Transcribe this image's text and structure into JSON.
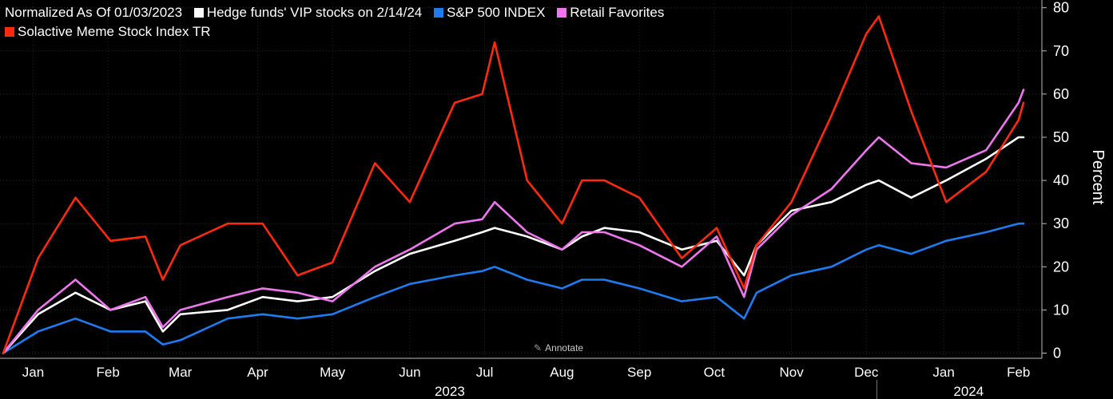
{
  "legend": {
    "items": [
      {
        "label": "Normalized As Of 01/03/2023",
        "color": null
      },
      {
        "label": "Hedge funds' VIP stocks on 2/14/24",
        "color": "#ffffff"
      },
      {
        "label": "S&P 500 INDEX",
        "color": "#1e7bf0"
      },
      {
        "label": "Retail Favorites",
        "color": "#ee77ee"
      },
      {
        "label": "Solactive Meme Stock Index TR",
        "color": "#ff2a10"
      }
    ]
  },
  "annotate_label": "Annotate",
  "annotate_icon": "pencil-icon",
  "chart_data": {
    "type": "line",
    "ylabel": "Percent",
    "ylim": [
      -2,
      80
    ],
    "yticks": [
      0,
      10,
      20,
      30,
      40,
      50,
      60,
      70,
      80
    ],
    "x": [
      "2023-01-03",
      "2023-01-17",
      "2023-02-01",
      "2023-02-15",
      "2023-03-01",
      "2023-03-08",
      "2023-03-15",
      "2023-04-03",
      "2023-04-17",
      "2023-05-01",
      "2023-05-15",
      "2023-06-01",
      "2023-06-15",
      "2023-07-03",
      "2023-07-14",
      "2023-07-19",
      "2023-08-01",
      "2023-08-15",
      "2023-08-23",
      "2023-09-01",
      "2023-09-15",
      "2023-10-02",
      "2023-10-16",
      "2023-10-27",
      "2023-11-01",
      "2023-11-15",
      "2023-12-01",
      "2023-12-15",
      "2023-12-20",
      "2024-01-02",
      "2024-01-16",
      "2024-02-01",
      "2024-02-14",
      "2024-02-16"
    ],
    "series": [
      {
        "name": "Hedge funds' VIP stocks on 2/14/24",
        "color": "#ffffff",
        "values": [
          0,
          9,
          14,
          10,
          12,
          5,
          9,
          10,
          13,
          12,
          13,
          19,
          23,
          26,
          28,
          29,
          27,
          24,
          27,
          29,
          28,
          24,
          26,
          18,
          25,
          33,
          35,
          39,
          40,
          36,
          40,
          45,
          50,
          50
        ]
      },
      {
        "name": "S&P 500 INDEX",
        "color": "#1e7bf0",
        "values": [
          0,
          5,
          8,
          5,
          5,
          2,
          3,
          8,
          9,
          8,
          9,
          13,
          16,
          18,
          19,
          20,
          17,
          15,
          17,
          17,
          15,
          12,
          13,
          8,
          14,
          18,
          20,
          24,
          25,
          23,
          26,
          28,
          30,
          30
        ]
      },
      {
        "name": "Retail Favorites",
        "color": "#ee77ee",
        "values": [
          0,
          10,
          17,
          10,
          13,
          6,
          10,
          13,
          15,
          14,
          12,
          20,
          24,
          30,
          31,
          35,
          28,
          24,
          28,
          28,
          25,
          20,
          27,
          13,
          24,
          32,
          38,
          47,
          50,
          44,
          43,
          47,
          58,
          61
        ]
      },
      {
        "name": "Solactive Meme Stock Index TR",
        "color": "#ff2a10",
        "values": [
          0,
          22,
          36,
          26,
          27,
          17,
          25,
          30,
          30,
          18,
          21,
          44,
          35,
          58,
          60,
          72,
          40,
          30,
          40,
          40,
          36,
          22,
          29,
          15,
          25,
          35,
          55,
          74,
          78,
          56,
          35,
          42,
          54,
          58
        ]
      }
    ],
    "x_tick_labels": [
      "Jan",
      "Feb",
      "Mar",
      "Apr",
      "May",
      "Jun",
      "Jul",
      "Aug",
      "Sep",
      "Oct",
      "Nov",
      "Dec",
      "Jan",
      "Feb"
    ],
    "x_tick_dates": [
      "2023-01-15",
      "2023-02-14",
      "2023-03-15",
      "2023-04-15",
      "2023-05-15",
      "2023-06-15",
      "2023-07-15",
      "2023-08-15",
      "2023-09-15",
      "2023-10-15",
      "2023-11-15",
      "2023-12-15",
      "2024-01-15",
      "2024-02-14"
    ],
    "year_labels": [
      {
        "label": "2023",
        "date": "2023-07-01"
      },
      {
        "label": "2024",
        "date": "2024-01-25"
      }
    ],
    "year_divider": "2024-01-01",
    "grid": true,
    "legend_position": "top-left"
  }
}
